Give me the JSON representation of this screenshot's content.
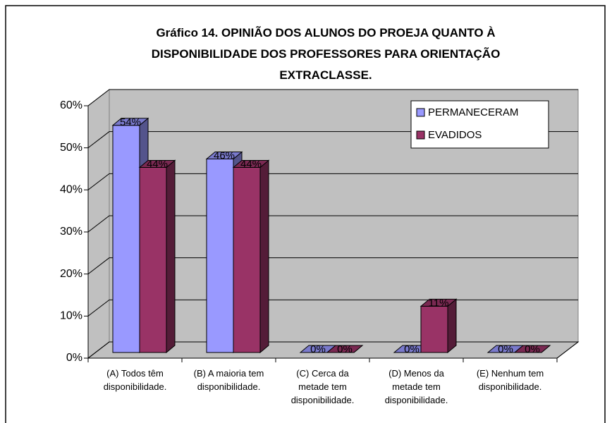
{
  "chart_data": {
    "type": "bar3d",
    "title": "Gráfico 14. OPINIÃO DOS ALUNOS DO PROEJA QUANTO À DISPONIBILIDADE DOS PROFESSORES PARA ORIENTAÇÃO EXTRACLASSE.",
    "categories": [
      "(A) Todos têm disponibilidade.",
      "(B) A maioria tem disponibilidade.",
      "(C) Cerca da metade tem disponibilidade.",
      "(D) Menos da metade tem disponibilidade.",
      "(E) Nenhum tem disponibilidade."
    ],
    "series": [
      {
        "name": "PERMANECERAM",
        "color": "#9999ff",
        "values": [
          54,
          46,
          0,
          0,
          0
        ],
        "value_labels": [
          "54%",
          "46%",
          "0%",
          "0%",
          "0%"
        ]
      },
      {
        "name": "EVADIDOS",
        "color": "#993366",
        "values": [
          44,
          44,
          0,
          11,
          0
        ],
        "value_labels": [
          "44%",
          "44%",
          "0%",
          "11%",
          "0%"
        ]
      }
    ],
    "ylim": [
      0,
      60
    ],
    "yticks": [
      {
        "value": 0,
        "label": "0%"
      },
      {
        "value": 10,
        "label": "10%"
      },
      {
        "value": 20,
        "label": "20%"
      },
      {
        "value": 30,
        "label": "30%"
      },
      {
        "value": 40,
        "label": "40%"
      },
      {
        "value": 50,
        "label": "50%"
      },
      {
        "value": 60,
        "label": "60%"
      }
    ],
    "grid": true,
    "legend": "top-right"
  }
}
